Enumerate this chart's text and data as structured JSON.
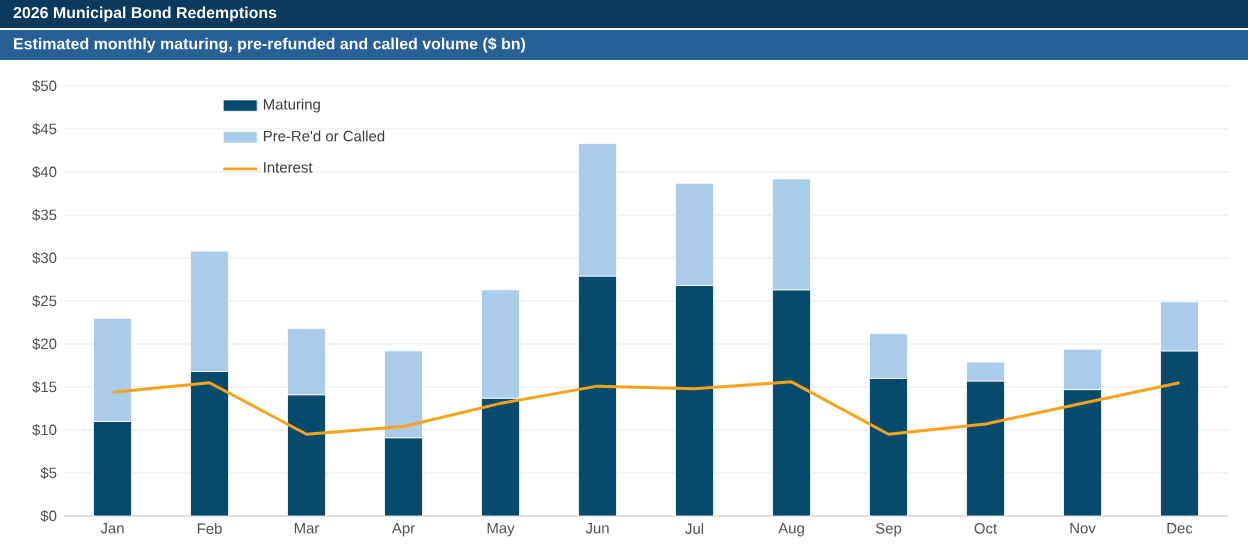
{
  "chart_data": {
    "type": "bar",
    "stacked": true,
    "title": "2026 Municipal Bond Redemptions",
    "subtitle": "Estimated monthly maturing, pre-refunded and called volume ($ bn)",
    "categories": [
      "Jan",
      "Feb",
      "Mar",
      "Apr",
      "May",
      "Jun",
      "Jul",
      "Aug",
      "Sep",
      "Oct",
      "Nov",
      "Dec"
    ],
    "series": [
      {
        "name": "Maturing",
        "color": "#064a6e",
        "values": [
          11,
          16.8,
          14.1,
          9.1,
          13.7,
          27.9,
          26.8,
          26.3,
          16.0,
          15.7,
          14.7,
          19.2
        ]
      },
      {
        "name": "Pre-Re'd or Called",
        "color": "#aacbea",
        "values": [
          12,
          14,
          7.7,
          10.1,
          12.6,
          15.4,
          11.9,
          12.9,
          5.2,
          2.2,
          4.7,
          5.7
        ]
      },
      {
        "name": "Interest",
        "type": "line",
        "color": "#f5a31a",
        "values": [
          14.4,
          15.5,
          9.5,
          10.4,
          13.1,
          15.1,
          14.8,
          15.6,
          9.5,
          10.7,
          13.1,
          15.5
        ]
      }
    ],
    "ylim": [
      0,
      50
    ],
    "yticks": [
      {
        "value": 0,
        "label": "$0"
      },
      {
        "value": 5,
        "label": "$5"
      },
      {
        "value": 10,
        "label": "$10"
      },
      {
        "value": 15,
        "label": "$15"
      },
      {
        "value": 20,
        "label": "$20"
      },
      {
        "value": 25,
        "label": "$25"
      },
      {
        "value": 30,
        "label": "$30"
      },
      {
        "value": 35,
        "label": "$35"
      },
      {
        "value": 40,
        "label": "$40"
      },
      {
        "value": 45,
        "label": "$45"
      },
      {
        "value": 50,
        "label": "$50"
      }
    ],
    "grid": "y",
    "legend": "top left",
    "marker": "none"
  }
}
